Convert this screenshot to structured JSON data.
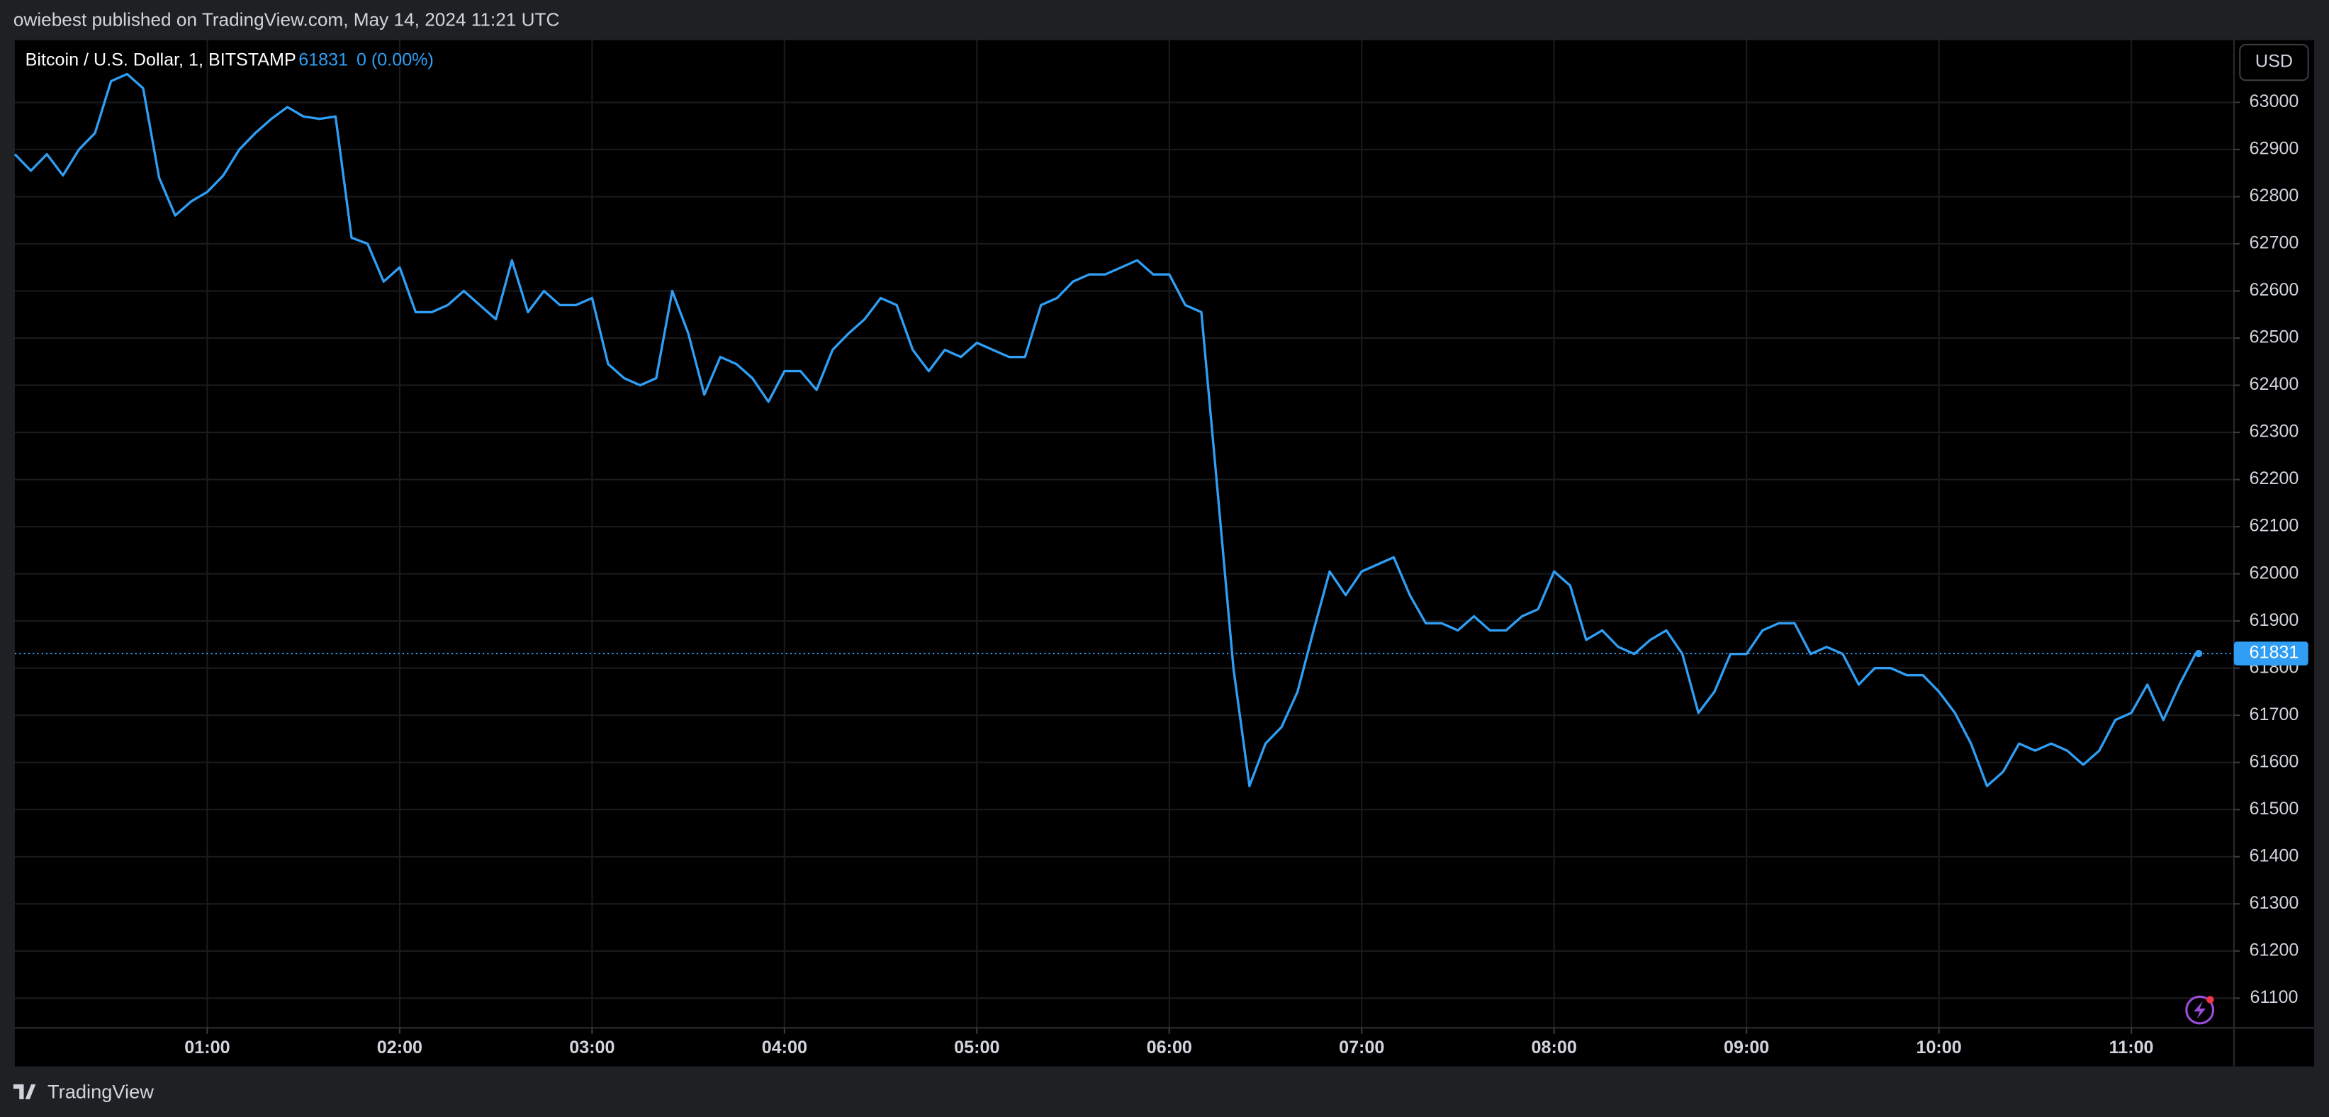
{
  "header": {
    "text": "owiebest published on TradingView.com, May 14, 2024 11:21 UTC"
  },
  "footer": {
    "brand": "TradingView"
  },
  "chart_data": {
    "type": "line",
    "currency": "USD",
    "change": "0 (0.00%)",
    "x": [
      "00:00",
      "00:05",
      "00:10",
      "00:15",
      "00:20",
      "00:25",
      "00:30",
      "00:35",
      "00:40",
      "00:45",
      "00:50",
      "00:55",
      "01:00",
      "01:05",
      "01:10",
      "01:15",
      "01:20",
      "01:25",
      "01:30",
      "01:35",
      "01:40",
      "01:45",
      "01:50",
      "01:55",
      "02:00",
      "02:05",
      "02:10",
      "02:15",
      "02:20",
      "02:25",
      "02:30",
      "02:35",
      "02:40",
      "02:45",
      "02:50",
      "02:55",
      "03:00",
      "03:05",
      "03:10",
      "03:15",
      "03:20",
      "03:25",
      "03:30",
      "03:35",
      "03:40",
      "03:45",
      "03:50",
      "03:55",
      "04:00",
      "04:05",
      "04:10",
      "04:15",
      "04:20",
      "04:25",
      "04:30",
      "04:35",
      "04:40",
      "04:45",
      "04:50",
      "04:55",
      "05:00",
      "05:05",
      "05:10",
      "05:15",
      "05:20",
      "05:25",
      "05:30",
      "05:35",
      "05:40",
      "05:45",
      "05:50",
      "05:55",
      "06:00",
      "06:05",
      "06:10",
      "06:15",
      "06:20",
      "06:25",
      "06:30",
      "06:35",
      "06:40",
      "06:45",
      "06:50",
      "06:55",
      "07:00",
      "07:05",
      "07:10",
      "07:15",
      "07:20",
      "07:25",
      "07:30",
      "07:35",
      "07:40",
      "07:45",
      "07:50",
      "07:55",
      "08:00",
      "08:05",
      "08:10",
      "08:15",
      "08:20",
      "08:25",
      "08:30",
      "08:35",
      "08:40",
      "08:45",
      "08:50",
      "08:55",
      "09:00",
      "09:05",
      "09:10",
      "09:15",
      "09:20",
      "09:25",
      "09:30",
      "09:35",
      "09:40",
      "09:45",
      "09:50",
      "09:55",
      "10:00",
      "10:05",
      "10:10",
      "10:15",
      "10:20",
      "10:25",
      "10:30",
      "10:35",
      "10:40",
      "10:45",
      "10:50",
      "10:55",
      "11:00",
      "11:05",
      "11:10",
      "11:15",
      "11:20",
      "11:21"
    ],
    "series": [
      {
        "name": "Bitcoin / U.S. Dollar, 1, BITSTAMP",
        "color": "#2f9ef4",
        "values": [
          62890,
          62855,
          62890,
          62845,
          62900,
          62935,
          63045,
          63060,
          63030,
          62840,
          62760,
          62790,
          62810,
          62845,
          62900,
          62935,
          62965,
          62990,
          62970,
          62965,
          62970,
          62713,
          62700,
          62620,
          62650,
          62555,
          62555,
          62570,
          62600,
          62570,
          62540,
          62665,
          62555,
          62600,
          62570,
          62570,
          62585,
          62445,
          62415,
          62400,
          62415,
          62600,
          62510,
          62380,
          62460,
          62445,
          62415,
          62365,
          62430,
          62430,
          62390,
          62475,
          62510,
          62540,
          62585,
          62570,
          62475,
          62430,
          62475,
          62460,
          62490,
          62475,
          62460,
          62460,
          62570,
          62585,
          62620,
          62635,
          62635,
          62650,
          62665,
          62635,
          62635,
          62570,
          62555,
          62180,
          61800,
          61550,
          61640,
          61675,
          61750,
          61880,
          62005,
          61955,
          62005,
          62020,
          62035,
          61955,
          61895,
          61895,
          61880,
          61910,
          61880,
          61880,
          61910,
          61925,
          62005,
          61975,
          61860,
          61880,
          61845,
          61830,
          61860,
          61880,
          61830,
          61705,
          61750,
          61830,
          61830,
          61880,
          61895,
          61895,
          61830,
          61845,
          61830,
          61765,
          61800,
          61800,
          61785,
          61785,
          61750,
          61705,
          61640,
          61550,
          61580,
          61640,
          61625,
          61640,
          61625,
          61595,
          61625,
          61690,
          61705,
          61765,
          61690,
          61765,
          61830,
          61831
        ]
      }
    ],
    "xlim": [
      "00:00",
      "11:32"
    ],
    "xticks": [
      "01:00",
      "02:00",
      "03:00",
      "04:00",
      "05:00",
      "06:00",
      "07:00",
      "08:00",
      "09:00",
      "10:00",
      "11:00"
    ],
    "ylim": [
      61037,
      63132
    ],
    "yticks": [
      61100,
      61200,
      61300,
      61400,
      61500,
      61600,
      61700,
      61800,
      61900,
      62000,
      62100,
      62200,
      62300,
      62400,
      62500,
      62600,
      62700,
      62800,
      62900,
      63000
    ],
    "grid": true
  }
}
